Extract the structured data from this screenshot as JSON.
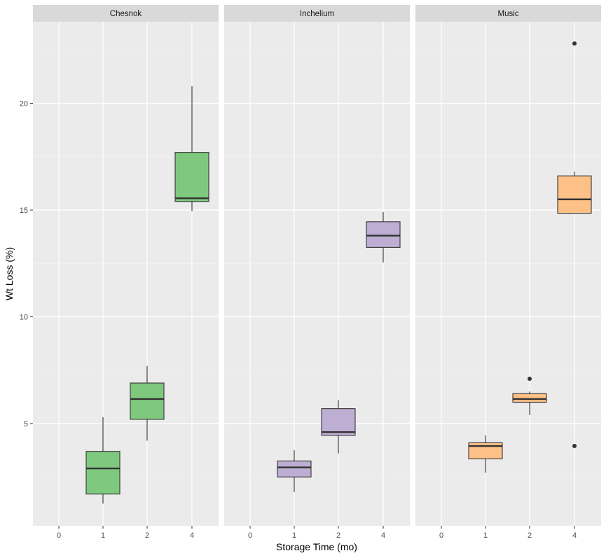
{
  "chart_data": {
    "type": "boxplot",
    "xlabel": "Storage Time (mo)",
    "ylabel": "Wt Loss (%)",
    "x_categories": [
      "0",
      "1",
      "2",
      "4"
    ],
    "yticks": [
      5,
      10,
      15,
      20
    ],
    "ylim": [
      0.3,
      23.5
    ],
    "grid": true,
    "legend": "none",
    "panels": [
      {
        "name": "Chesnok",
        "fill": "#7fc97f",
        "boxes": [
          {
            "x": "1",
            "whisker_low": 1.25,
            "q1": 1.7,
            "median": 2.9,
            "q3": 3.7,
            "whisker_high": 5.3,
            "outliers": []
          },
          {
            "x": "2",
            "whisker_low": 4.2,
            "q1": 5.2,
            "median": 6.15,
            "q3": 6.9,
            "whisker_high": 7.7,
            "outliers": []
          },
          {
            "x": "4",
            "whisker_low": 14.95,
            "q1": 15.4,
            "median": 15.55,
            "q3": 17.7,
            "whisker_high": 20.8,
            "outliers": []
          }
        ]
      },
      {
        "name": "Inchelium",
        "fill": "#beaed4",
        "boxes": [
          {
            "x": "1",
            "whisker_low": 1.8,
            "q1": 2.5,
            "median": 2.95,
            "q3": 3.25,
            "whisker_high": 3.75,
            "outliers": []
          },
          {
            "x": "2",
            "whisker_low": 3.6,
            "q1": 4.45,
            "median": 4.6,
            "q3": 5.7,
            "whisker_high": 6.1,
            "outliers": []
          },
          {
            "x": "4",
            "whisker_low": 12.55,
            "q1": 13.25,
            "median": 13.8,
            "q3": 14.45,
            "whisker_high": 14.9,
            "outliers": []
          }
        ]
      },
      {
        "name": "Music",
        "fill": "#fdc086",
        "boxes": [
          {
            "x": "1",
            "whisker_low": 2.7,
            "q1": 3.35,
            "median": 3.95,
            "q3": 4.1,
            "whisker_high": 4.45,
            "outliers": []
          },
          {
            "x": "2",
            "whisker_low": 5.4,
            "q1": 6.0,
            "median": 6.15,
            "q3": 6.4,
            "whisker_high": 6.5,
            "outliers": [
              7.1
            ]
          },
          {
            "x": "4",
            "whisker_low": 14.85,
            "q1": 14.85,
            "median": 15.5,
            "q3": 16.6,
            "whisker_high": 16.8,
            "outliers": [
              22.8,
              3.95
            ]
          }
        ]
      }
    ]
  }
}
